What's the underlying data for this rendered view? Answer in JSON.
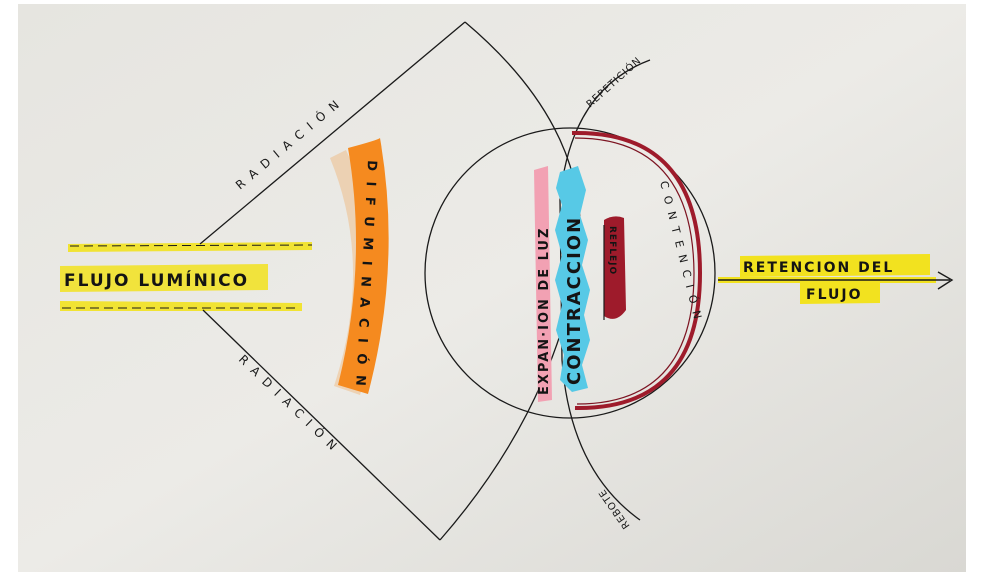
{
  "diagram": {
    "left_label": "FLUJO LUMÍNICO",
    "right_label_line1": "RETENCION DEL",
    "right_label_line2": "FLUJO",
    "radiation_top": "R A D I A C I Ó N",
    "radiation_bottom": "R A D I A C I Ó N",
    "difuminacion": "D I F U M I N A C I Ó N",
    "expansion": "EXPAN·ION DE LUZ",
    "contraccion": "CONTRACCION",
    "reflejo": "REFLEJO",
    "contencion": "C O N T E N C I Ó N",
    "repeticion": "REPETICIÓN",
    "rebote": "REBOTE"
  },
  "colors": {
    "paper": "#e9e8e3",
    "highlight_yellow": "#f2e21f",
    "orange": "#f58a1f",
    "pink": "#f2a1b3",
    "cyan": "#57c9e6",
    "dark_red": "#9e1b2b",
    "ink": "#1a1a1a"
  }
}
